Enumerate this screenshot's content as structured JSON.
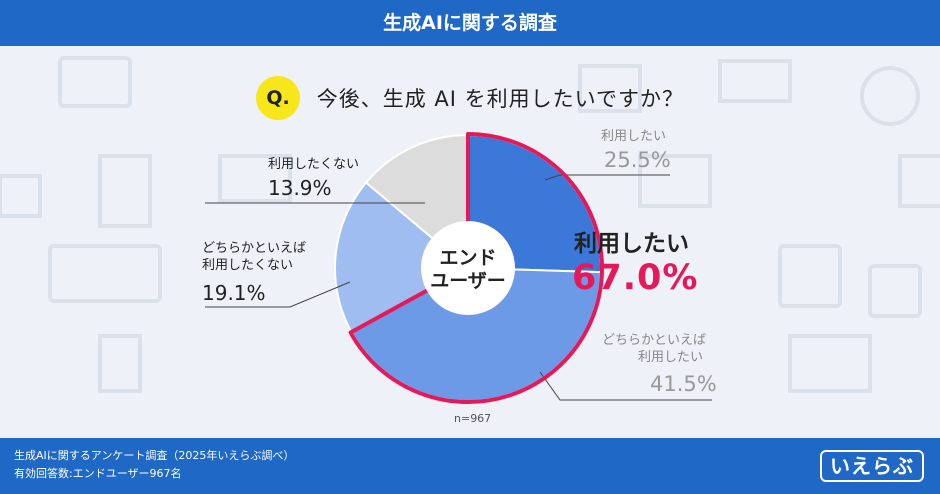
{
  "header": {
    "title": "生成AIに関する調査"
  },
  "question": {
    "badge": "Q.",
    "text": "今後、生成 AI を利用したいですか？"
  },
  "chart_data": {
    "type": "pie",
    "center_label_line1": "エンド",
    "center_label_line2": "ユーザー",
    "categories": [
      "利用したい",
      "どちらかといえば利用したい",
      "どちらかといえば利用したくない",
      "利用したくない"
    ],
    "values": [
      25.5,
      41.5,
      19.1,
      13.9
    ],
    "colors": [
      "#3b78d8",
      "#6d9ae6",
      "#9fbdf0",
      "#dcdcdc"
    ],
    "n_label": "n=967",
    "highlight": {
      "label": "利用したい",
      "value_text": "67.0%",
      "color": "#e5195a"
    }
  },
  "labels": {
    "slice1_name": "利用したい",
    "slice1_pct": "25.5%",
    "slice2_line1": "どちらかといえば",
    "slice2_line2": "利用したい",
    "slice2_pct": "41.5%",
    "slice3_line1": "どちらかといえば",
    "slice3_line2": "利用したくない",
    "slice3_pct": "19.1%",
    "slice4_name": "利用したくない",
    "slice4_pct": "13.9%"
  },
  "footer": {
    "line1": "生成AIに関するアンケート調査（2025年いえらぶ調べ）",
    "line2": "有効回答数:エンドユーザー967名",
    "logo": "いえらぶ"
  }
}
